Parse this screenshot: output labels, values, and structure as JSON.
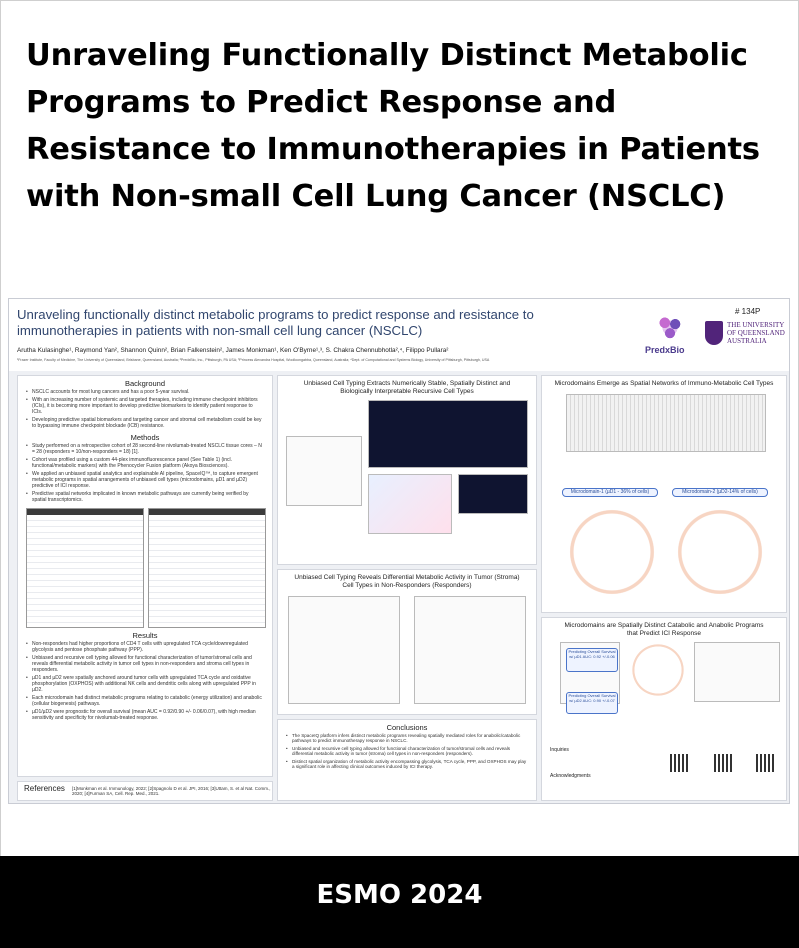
{
  "title": "Unraveling Functionally Distinct Metabolic Programs to Predict Response and Resistance to Immunotherapies in Patients with Non-small Cell Lung Cancer (NSCLC)",
  "poster": {
    "title": "Unraveling functionally distinct metabolic programs to predict response and resistance to immunotherapies in patients with non-small cell lung cancer (NSCLC)",
    "poster_id": "# 134P",
    "authors": "Arutha Kulasinghe¹, Raymond Yan², Shannon Quinn², Brian Falkenstein², James Monkman¹, Ken O'Byrne¹,³, S. Chakra Chennubhotla²,⁴, Filippo Pullara²",
    "logo_predx": "PredxBio",
    "logo_uq": "THE UNIVERSITY OF QUEENSLAND AUSTRALIA",
    "background": {
      "heading": "Background",
      "bullets": [
        "NSCLC accounts for most lung cancers and has a poor 5-year survival.",
        "With an increasing number of systemic and targeted therapies, including immune checkpoint inhibitors (ICIs), it is becoming more important to develop predictive biomarkers to identify patient response to ICIs.",
        "Developing predictive spatial biomarkers and targeting cancer and stromal cell metabolism could be key to bypassing immune checkpoint blockade (ICB) resistance."
      ]
    },
    "methods": {
      "heading": "Methods",
      "bullets": [
        "Study performed on a retrospective cohort of 28 second-line nivolumab-treated NSCLC tissue cores – N = 28 (responders = 10/non-responders = 18) [1].",
        "Cohort was profiled using a custom 44-plex immunofluorescence panel (See Table 1) (incl. functional/metabolic markers) with the Phenocycler Fusion platform (Akoya Biosciences).",
        "We applied an unbiased spatial analytics and explainable AI pipeline, SpaceIQ™, to capture emergent metabolic programs in spatial arrangements of unbiased cell types (microdomains, µD1 and µD2) predictive of ICI response.",
        "Predictive spatial networks implicated in known metabolic pathways are currently being verified by spatial transcriptomics."
      ]
    },
    "results": {
      "heading": "Results",
      "bullets": [
        "Non-responders had higher proportions of CD4 T cells with upregulated TCA cycle/downregulated glycolysis and pentose phosphate pathway (PPP).",
        "Unbiased and recursive cell typing allowed for functional characterization of tumor/stromal cells and reveals differential metabolic activity in tumor cell types in non-responders and stroma cell types in responders.",
        "µD1 and µD2 were spatially anchored around tumor cells with upregulated TCA cycle and oxidative phosphorylation (OXPHOS) with additional NK cells and dendritic cells along with upregulated PPP in µD2.",
        "Each microdomain had distinct metabolic programs relating to catabolic (energy utilization) and anabolic (cellular biogenesis) pathways.",
        "µD1/µD2 were prognostic for overall survival (mean AUC = 0.92/0.90 +/- 0.06/0.07), with high median sensitivity and specificity for nivolumab-treated response."
      ]
    },
    "references": {
      "heading": "References",
      "text": "[1]Monkman et al. Immunology, 2022; [2]Spagnolo D et al. JPI, 2016; [3]Uttam, S. et al Nat. Comm., 2020; [4]Furman SA, Cell. Rep. Med., 2021."
    },
    "panel_celltyping": "Unbiased Cell Typing Extracts Numerically Stable, Spatially Distinct and Biologically Interpretable Recursive Cell Types",
    "panel_differential": "Unbiased Cell Typing Reveals Differential Metabolic Activity in Tumor (Stroma) Cell Types in Non-Responders (Responders)",
    "panel_microdomains": "Microdomains Emerge as Spatial Networks of Immuno-Metabolic Cell Types",
    "microdomain_1": "Microdomain-1 (µD1 - 36% of cells)",
    "microdomain_2": "Microdomain-2 (µD2-14% of cells)",
    "panel_catabolic": "Microdomains are Spatially Distinct Catabolic and Anabolic Programs that Predict ICI Response",
    "auc_1": "Predicting Overall Survival w/ µD1 AUC: 0.92 +/-0.06",
    "auc_2": "Predicting Overall Survival w/ µD2 AUC: 0.90 +/-0.07",
    "conclusions": {
      "heading": "Conclusions",
      "bullets": [
        "The SpaceIQ platform infers distinct metabolic programs revealing spatially mediated roles for anabolic/catabolic pathways to predict immunotherapy response in NSCLC.",
        "Unbiased and recursive cell typing allowed for functional characterization of tumor/stromal cells and reveals differential metabolic activity in tumor (stroma) cell types in non-responders (responders).",
        "Distinct spatial organization of metabolic activity encompassing glycolysis, TCA cycle, PPP, and OXPHOS may play a significant role in affecting clinical outcomes induced by ICI therapy."
      ]
    },
    "inquiries": "Inquiries",
    "acknowledgments": "Acknowledgments"
  },
  "footer": "ESMO 2024"
}
